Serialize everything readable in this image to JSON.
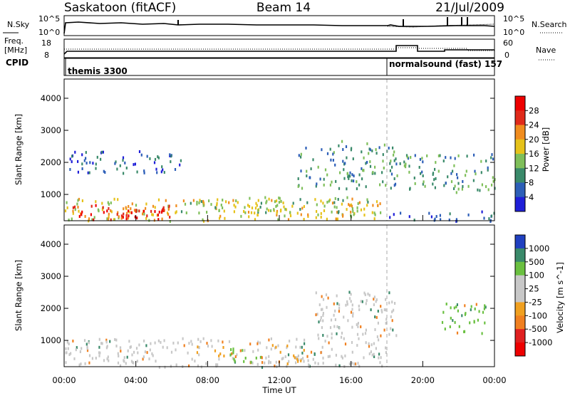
{
  "header": {
    "title": "Saskatoon (fitACF)",
    "beam": "Beam 14",
    "date": "21/Jul/2009"
  },
  "top_panels": {
    "nsky_label": "N.Sky",
    "nsky_ticks": [
      "10^5",
      "10^0"
    ],
    "nsearch_label": "N.Search",
    "nsearch_ticks": [
      "10^5",
      "10^0"
    ],
    "freq_label": "Freq.",
    "freq_unit": "[MHz]",
    "freq_ticks": [
      "18",
      "8"
    ],
    "nave_label": "Nave",
    "nave_ticks": [
      "60",
      "0"
    ],
    "cpid_label": "CPID",
    "cpid_segments": [
      {
        "label": "themis 3300",
        "start_hour": 0
      },
      {
        "label": "normalsound (fast) 157",
        "start_hour": 18
      }
    ]
  },
  "chart_data": [
    {
      "type": "heatmap",
      "title": "",
      "xlabel": "Time UT",
      "ylabel": "Slant Range [km]",
      "xlim_hours": [
        0,
        24
      ],
      "ylim": [
        180,
        4600
      ],
      "yticks": [
        "1000",
        "2000",
        "3000",
        "4000"
      ],
      "colorbar": {
        "label": "Power [dB]",
        "ticks": [
          "4",
          "8",
          "12",
          "16",
          "20",
          "24",
          "28"
        ],
        "colors": [
          "#1f1fd8",
          "#2d5fb8",
          "#3a8a6a",
          "#7fbf5a",
          "#e6c21a",
          "#f08c1e",
          "#e02a1a",
          "#ee0000"
        ]
      },
      "regions": [
        {
          "t0": 0.0,
          "t1": 18.0,
          "r0": 200,
          "r1": 900,
          "level": 4
        },
        {
          "t0": 0.3,
          "t1": 6.0,
          "r0": 250,
          "r1": 700,
          "level": 6
        },
        {
          "t0": 3.0,
          "t1": 5.5,
          "r0": 250,
          "r1": 550,
          "level": 7
        },
        {
          "t0": 0.2,
          "t1": 6.5,
          "r0": 1700,
          "r1": 2400,
          "level": 1
        },
        {
          "t0": 6.5,
          "t1": 9.5,
          "r0": 500,
          "r1": 850,
          "level": 3
        },
        {
          "t0": 10.0,
          "t1": 17.0,
          "r0": 400,
          "r1": 950,
          "level": 3
        },
        {
          "t0": 13.0,
          "t1": 18.5,
          "r0": 1200,
          "r1": 2700,
          "level": 2
        },
        {
          "t0": 18.5,
          "t1": 24.0,
          "r0": 1100,
          "r1": 2300,
          "level": 2
        },
        {
          "t0": 18.0,
          "t1": 24.0,
          "r0": 200,
          "r1": 500,
          "level": 1
        }
      ]
    },
    {
      "type": "heatmap",
      "title": "",
      "xlabel": "Time UT",
      "ylabel": "Slant Range [km]",
      "xlim_hours": [
        0,
        24
      ],
      "ylim": [
        180,
        4600
      ],
      "yticks": [
        "1000",
        "2000",
        "3000",
        "4000"
      ],
      "xticks": [
        "00:00",
        "04:00",
        "08:00",
        "12:00",
        "16:00",
        "20:00",
        "00:00"
      ],
      "colorbar": {
        "label": "Velocity [m s^-1]",
        "ticks": [
          "1000",
          "500",
          "100",
          "25",
          "-25",
          "-100",
          "-500",
          "-1000"
        ],
        "colors": [
          "#2040c0",
          "#3a8a6a",
          "#6ac040",
          "#c8c8c8",
          "#c8c8c8",
          "#f0a020",
          "#f08020",
          "#e02020",
          "#ee0000"
        ]
      },
      "regions": [
        {
          "t0": 0.0,
          "t1": 18.0,
          "r0": 200,
          "r1": 1100,
          "vel": "gray"
        },
        {
          "t0": 7.0,
          "t1": 9.0,
          "r0": 550,
          "r1": 850,
          "vel": "orange"
        },
        {
          "t0": 9.0,
          "t1": 11.0,
          "r0": 350,
          "r1": 800,
          "vel": "green"
        },
        {
          "t0": 11.5,
          "t1": 13.5,
          "r0": 300,
          "r1": 900,
          "vel": "orange"
        },
        {
          "t0": 14.0,
          "t1": 18.5,
          "r0": 1100,
          "r1": 2600,
          "vel": "gray"
        },
        {
          "t0": 21.0,
          "t1": 23.5,
          "r0": 1200,
          "r1": 2200,
          "vel": "green"
        }
      ]
    }
  ]
}
